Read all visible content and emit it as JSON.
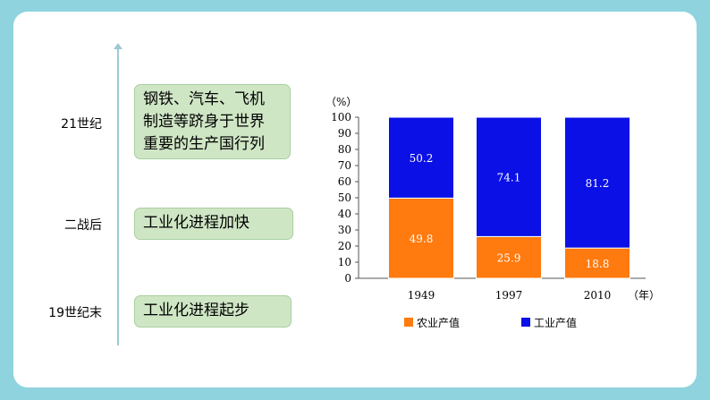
{
  "timeline": [
    {
      "era": "21世纪",
      "event": "钢铁、汽车、飞机\n制造等跻身于世界\n重要的生产国行列"
    },
    {
      "era": "二战后",
      "event": "工业化进程加快"
    },
    {
      "era": "19世纪末",
      "event": "工业化进程起步"
    }
  ],
  "chart_data": {
    "type": "bar",
    "stacked": true,
    "categories": [
      "1949",
      "1997",
      "2010"
    ],
    "series": [
      {
        "name": "农业产值",
        "color": "#ff7a0f",
        "values": [
          49.8,
          25.9,
          18.8
        ]
      },
      {
        "name": "工业产值",
        "color": "#0a10e6",
        "values": [
          50.2,
          74.1,
          81.2
        ]
      }
    ],
    "value_labels": {
      "agriculture": [
        "49.8",
        "25.9",
        "18.8"
      ],
      "industry": [
        "50.2",
        "74.1",
        "81.2"
      ]
    },
    "ylabel": "（%）",
    "xlabel": "（年）",
    "ylim": [
      0,
      100
    ],
    "yticks": [
      "0",
      "10",
      "20",
      "30",
      "40",
      "50",
      "60",
      "70",
      "80",
      "90",
      "100"
    ],
    "legend_position": "bottom"
  }
}
